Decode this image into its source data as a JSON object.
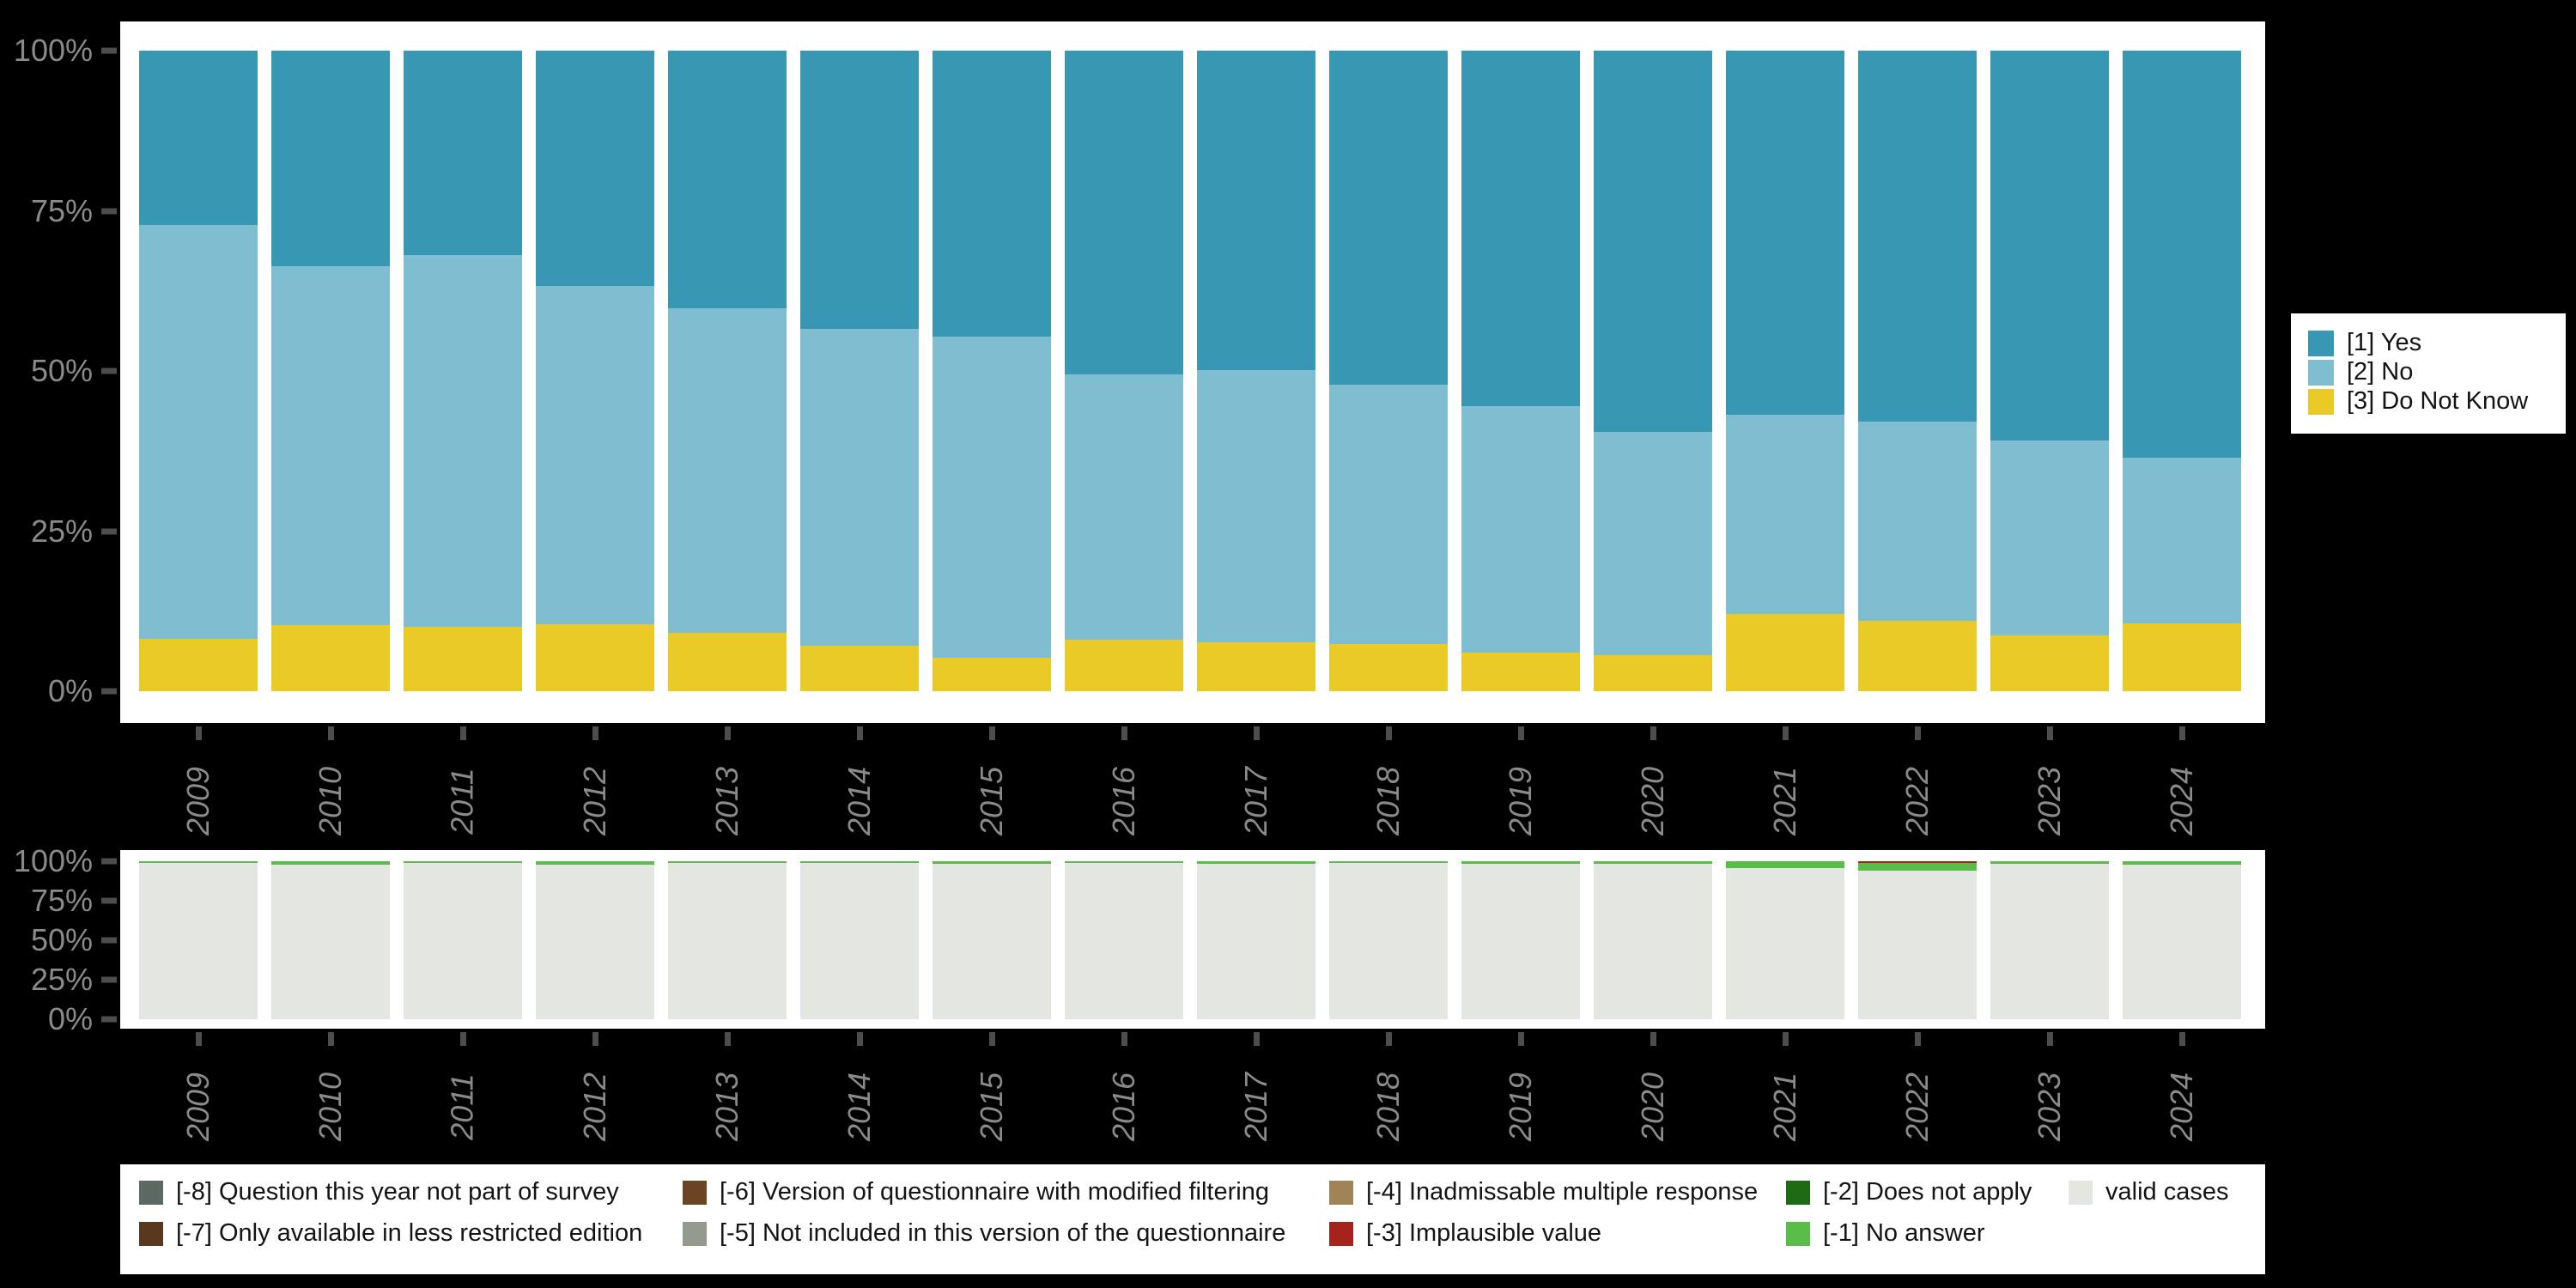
{
  "chart_data": [
    {
      "type": "bar",
      "stacked": true,
      "unit": "percent",
      "title": "",
      "xlabel": "",
      "ylabel": "",
      "ylim": [
        0,
        100
      ],
      "grid": false,
      "legend_position": "right",
      "categories": [
        "2009",
        "2010",
        "2011",
        "2012",
        "2013",
        "2014",
        "2015",
        "2016",
        "2017",
        "2018",
        "2019",
        "2020",
        "2021",
        "2022",
        "2023",
        "2024"
      ],
      "y_ticks": [
        "0%",
        "25%",
        "50%",
        "75%",
        "100%"
      ],
      "series": [
        {
          "name": "[1] Yes",
          "color": "#3898b4",
          "values": [
            27.2,
            33.7,
            31.9,
            36.7,
            40.2,
            43.4,
            44.6,
            50.5,
            49.8,
            52.2,
            55.5,
            59.5,
            56.9,
            57.9,
            60.9,
            63.5
          ]
        },
        {
          "name": "[2] No",
          "color": "#7fbdd0",
          "values": [
            64.6,
            56.0,
            58.1,
            52.9,
            50.7,
            49.5,
            50.2,
            41.5,
            42.6,
            40.4,
            38.5,
            34.9,
            31.0,
            31.1,
            30.4,
            25.9
          ]
        },
        {
          "name": "[3] Do Not Know",
          "color": "#eaca26",
          "values": [
            8.2,
            10.3,
            10.0,
            10.4,
            9.1,
            7.1,
            5.2,
            8.0,
            7.6,
            7.4,
            6.0,
            5.6,
            12.1,
            11.0,
            8.7,
            10.6
          ]
        }
      ]
    },
    {
      "type": "bar",
      "stacked": true,
      "unit": "percent",
      "title": "",
      "xlabel": "",
      "ylabel": "",
      "ylim": [
        0,
        100
      ],
      "grid": false,
      "legend_position": "bottom",
      "categories": [
        "2009",
        "2010",
        "2011",
        "2012",
        "2013",
        "2014",
        "2015",
        "2016",
        "2017",
        "2018",
        "2019",
        "2020",
        "2021",
        "2022",
        "2023",
        "2024"
      ],
      "y_ticks": [
        "0%",
        "25%",
        "50%",
        "75%",
        "100%"
      ],
      "series": [
        {
          "name": "[-3] Implausible value",
          "color": "#a6231c",
          "values": [
            0,
            0,
            0,
            0,
            0,
            0,
            0,
            0,
            0,
            0,
            0,
            0,
            0,
            0.9,
            0,
            0
          ]
        },
        {
          "name": "[-1] No answer",
          "color": "#5bbd49",
          "values": [
            1.2,
            2.0,
            1.3,
            2.0,
            1.3,
            1.3,
            1.7,
            1.3,
            1.5,
            1.0,
            1.4,
            1.4,
            4.3,
            5.0,
            1.8,
            2.2
          ]
        },
        {
          "name": "valid cases",
          "color": "#e4e7e1",
          "values": [
            98.8,
            98.0,
            98.7,
            98.0,
            98.7,
            98.7,
            98.3,
            98.7,
            98.5,
            99.0,
            98.6,
            98.6,
            95.7,
            94.1,
            98.2,
            97.8
          ]
        }
      ]
    }
  ],
  "missing_legend": {
    "rows": [
      [
        {
          "label": "[-8] Question this year not part of survey",
          "color": "#5c6862"
        },
        {
          "label": "[-6] Version of questionnaire with modified filtering",
          "color": "#6b4423"
        },
        {
          "label": "[-4] Inadmissable multiple response",
          "color": "#a18456"
        },
        {
          "label": "[-2] Does not apply",
          "color": "#1d6b12"
        },
        {
          "label": "valid cases",
          "color": "#e4e7e1"
        }
      ],
      [
        {
          "label": "[-7] Only available in less restricted edition",
          "color": "#5a381d"
        },
        {
          "label": "[-5] Not included in this version of the questionnaire",
          "color": "#959a8e"
        },
        {
          "label": "[-3] Implausible value",
          "color": "#a6231c"
        },
        {
          "label": "[-1] No answer",
          "color": "#5bbd49"
        }
      ]
    ]
  },
  "colors": {
    "background": "#000000",
    "panel": "#ffffff",
    "axis_text": "#8a8a8a",
    "tick_mark": "#4d4d4d",
    "legend_text": "#141414"
  }
}
